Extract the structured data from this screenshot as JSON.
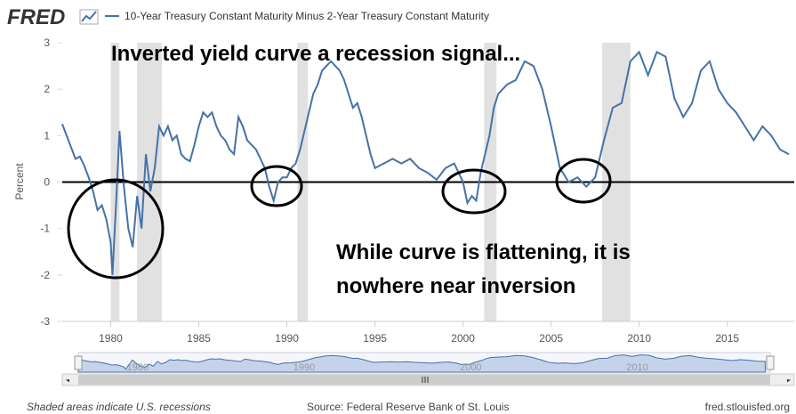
{
  "header": {
    "logo": "FRED"
  },
  "chart_data": {
    "type": "line",
    "ylabel": "Percent",
    "annotations": [
      "Inverted yield curve a recession signal...",
      "While curve is flattening, it is",
      "nowhere near inversion"
    ],
    "x": [
      1977.25,
      1977.5,
      1977.75,
      1978,
      1978.25,
      1978.5,
      1978.75,
      1979,
      1979.25,
      1979.5,
      1979.75,
      1980,
      1980.1,
      1980.3,
      1980.5,
      1980.75,
      1981,
      1981.25,
      1981.5,
      1981.75,
      1982,
      1982.25,
      1982.5,
      1982.75,
      1983,
      1983.25,
      1983.5,
      1983.75,
      1984,
      1984.25,
      1984.5,
      1984.75,
      1985,
      1985.25,
      1985.5,
      1985.75,
      1986,
      1986.25,
      1986.5,
      1986.75,
      1987,
      1987.25,
      1987.5,
      1987.75,
      1988,
      1988.25,
      1988.5,
      1988.75,
      1989,
      1989.25,
      1989.5,
      1989.75,
      1990,
      1990.25,
      1990.5,
      1990.75,
      1991,
      1991.25,
      1991.5,
      1991.75,
      1992,
      1992.25,
      1992.5,
      1992.75,
      1993,
      1993.25,
      1993.5,
      1993.75,
      1994,
      1994.25,
      1994.5,
      1994.75,
      1995,
      1995.5,
      1996,
      1996.5,
      1997,
      1997.5,
      1998,
      1998.5,
      1999,
      1999.5,
      2000,
      2000.25,
      2000.5,
      2000.75,
      2001,
      2001.25,
      2001.5,
      2001.75,
      2002,
      2002.5,
      2003,
      2003.5,
      2004,
      2004.5,
      2005,
      2005.5,
      2006,
      2006.5,
      2007,
      2007.5,
      2008,
      2008.5,
      2009,
      2009.5,
      2010,
      2010.5,
      2011,
      2011.5,
      2012,
      2012.5,
      2013,
      2013.5,
      2014,
      2014.5,
      2015,
      2015.5,
      2016,
      2016.5,
      2017,
      2017.5,
      2018,
      2018.5
    ],
    "series": [
      {
        "name": "10-Year Treasury Constant Maturity Minus 2-Year Treasury Constant Maturity",
        "color": "#4572a7",
        "values": [
          1.25,
          1.0,
          0.75,
          0.5,
          0.55,
          0.35,
          0.1,
          -0.2,
          -0.6,
          -0.5,
          -0.8,
          -1.3,
          -2.0,
          -0.5,
          1.1,
          -0.1,
          -1.0,
          -1.4,
          -0.3,
          -1.0,
          0.6,
          -0.2,
          0.3,
          1.2,
          1.0,
          1.2,
          0.9,
          1.0,
          0.6,
          0.5,
          0.45,
          0.8,
          1.2,
          1.5,
          1.4,
          1.5,
          1.2,
          1.0,
          0.9,
          0.7,
          0.6,
          1.4,
          1.2,
          0.9,
          0.8,
          0.7,
          0.5,
          0.3,
          -0.1,
          -0.4,
          0.0,
          0.1,
          0.1,
          0.3,
          0.4,
          0.7,
          1.1,
          1.5,
          1.9,
          2.1,
          2.4,
          2.5,
          2.6,
          2.5,
          2.4,
          2.2,
          1.9,
          1.6,
          1.7,
          1.4,
          1.0,
          0.6,
          0.3,
          0.4,
          0.5,
          0.4,
          0.5,
          0.3,
          0.2,
          0.05,
          0.3,
          0.4,
          0.0,
          -0.45,
          -0.3,
          -0.4,
          0.2,
          0.6,
          1.0,
          1.6,
          1.9,
          2.1,
          2.2,
          2.6,
          2.5,
          2.0,
          1.2,
          0.3,
          0.0,
          0.1,
          -0.1,
          0.1,
          0.9,
          1.6,
          1.7,
          2.6,
          2.8,
          2.3,
          2.8,
          2.7,
          1.8,
          1.4,
          1.7,
          2.4,
          2.6,
          2.0,
          1.7,
          1.5,
          1.2,
          0.9,
          1.2,
          1.0,
          0.7,
          0.6
        ]
      }
    ],
    "recessions": [
      [
        1980.0,
        1980.5
      ],
      [
        1981.5,
        1982.9
      ],
      [
        1990.6,
        1991.2
      ],
      [
        2001.2,
        2001.9
      ],
      [
        2007.9,
        2009.5
      ]
    ],
    "recession_color": "#e1e1e1",
    "reference_line": 0,
    "xlim": [
      1977.25,
      2018.8
    ],
    "ylim": [
      -3,
      3
    ],
    "xticks": [
      1980,
      1985,
      1990,
      1995,
      2000,
      2005,
      2010,
      2015
    ],
    "yticks": [
      -3,
      -2,
      -1,
      0,
      1,
      2,
      3
    ],
    "navigator_ticks": [
      1980,
      1990,
      2000,
      2010
    ],
    "grid": false
  },
  "footer": {
    "note": "Shaded areas indicate U.S. recessions",
    "source": "Source: Federal Reserve Bank of St. Louis",
    "site": "fred.stlouisfed.org"
  }
}
